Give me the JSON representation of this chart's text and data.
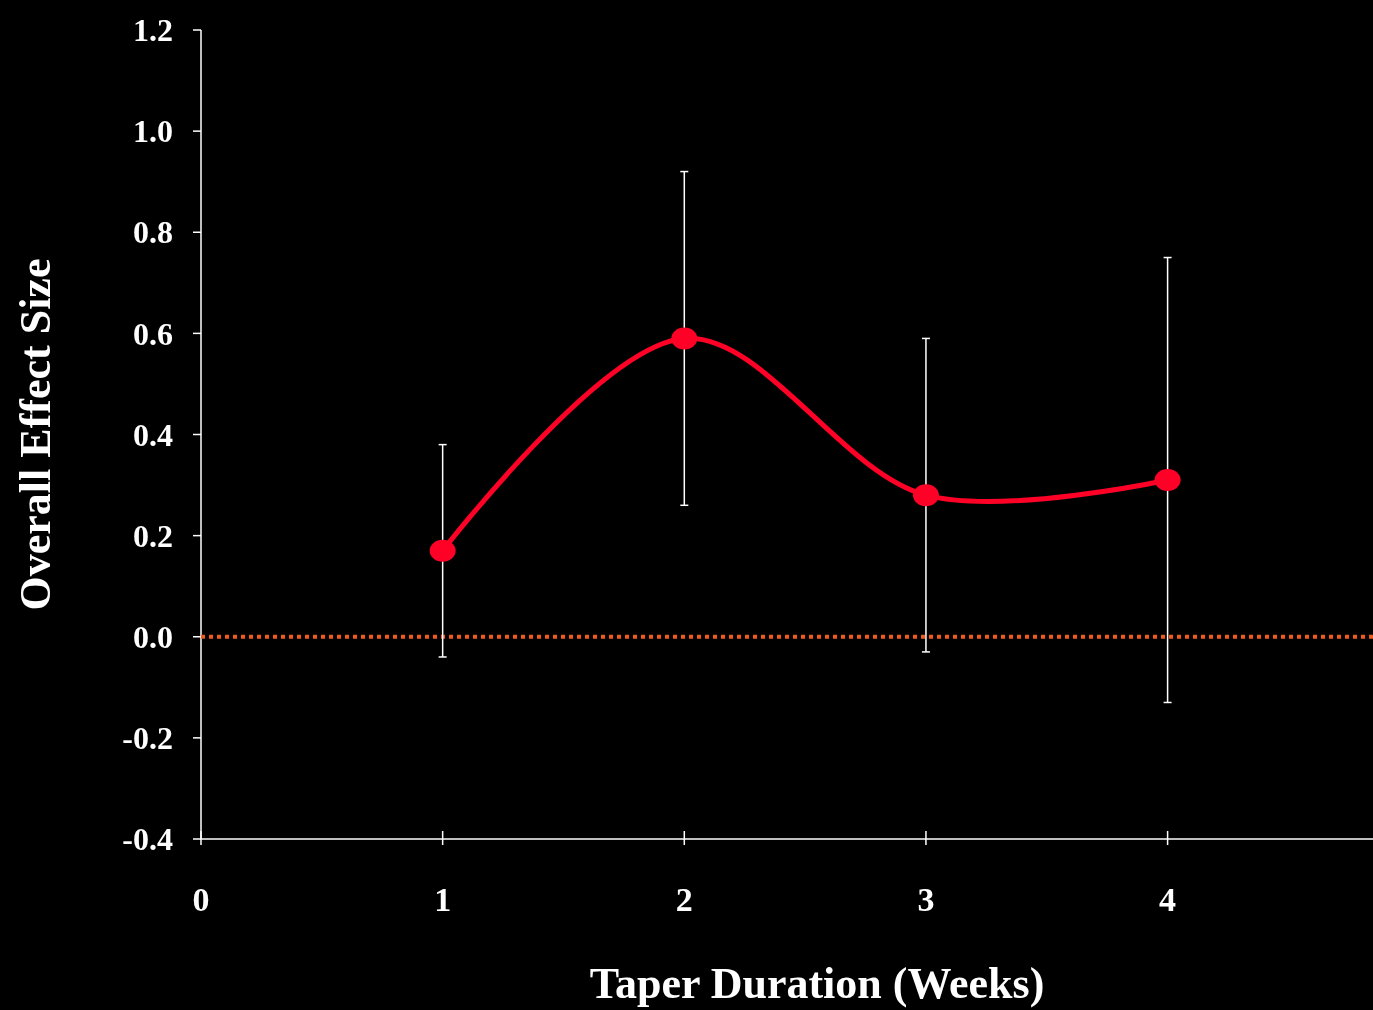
{
  "chart_data": {
    "type": "line",
    "xlabel": "Taper Duration (Weeks)",
    "ylabel": "Overall Effect Size",
    "x": [
      1,
      2,
      3,
      4
    ],
    "series": [
      {
        "color": "#ff0026",
        "values": [
          0.17,
          0.59,
          0.28,
          0.31
        ],
        "errors": [
          [
            -0.04,
            0.38
          ],
          [
            0.26,
            0.92
          ],
          [
            -0.03,
            0.59
          ],
          [
            -0.13,
            0.75
          ]
        ]
      }
    ],
    "xlim": [
      0,
      4.85
    ],
    "xticks": [
      0,
      1,
      2,
      3,
      4
    ],
    "ylim": [
      -0.4,
      1.2
    ],
    "yticks": [
      {
        "value": -0.4,
        "label": "-0.4"
      },
      -0.2,
      {
        "value": 0,
        "label": "0.0"
      },
      0.2,
      0.4,
      0.6,
      0.8,
      {
        "value": 1,
        "label": "1.0"
      },
      1.2
    ],
    "ref_lines": [
      {
        "axis": "y",
        "value": 0,
        "color": "#f05a1e",
        "line_style": "dotted"
      }
    ],
    "marker": "circle",
    "line_style": "solid"
  }
}
